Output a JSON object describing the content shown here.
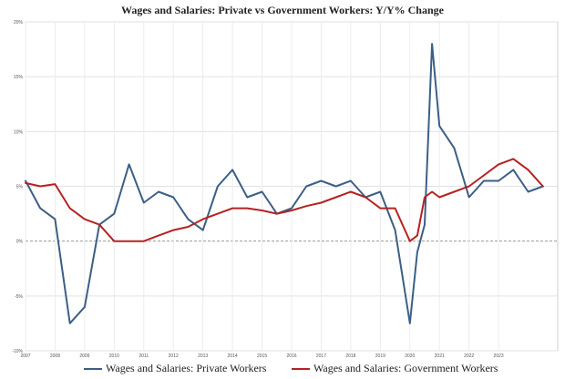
{
  "chart_data": {
    "type": "line",
    "title": "Wages and Salaries: Private vs Government Workers: Y/Y% Change",
    "xlabel": "",
    "ylabel": "",
    "x": [
      "2007",
      "2007.5",
      "2008",
      "2008.5",
      "2009",
      "2009.5",
      "2010",
      "2010.5",
      "2011",
      "2011.5",
      "2012",
      "2012.5",
      "2013",
      "2013.5",
      "2014",
      "2014.5",
      "2015",
      "2015.5",
      "2016",
      "2016.5",
      "2017",
      "2017.5",
      "2018",
      "2018.5",
      "2019",
      "2019.5",
      "2020",
      "2020.25",
      "2020.5",
      "2020.75",
      "2021",
      "2021.5",
      "2022",
      "2022.5",
      "2023",
      "2023.5",
      "2024",
      "2024.5"
    ],
    "xtick_labels": [
      "2007",
      "2008",
      "2009",
      "2010",
      "2011",
      "2012",
      "2013",
      "2014",
      "2015",
      "2016",
      "2017",
      "2018",
      "2019",
      "2020",
      "2021",
      "2022",
      "2023"
    ],
    "ytick_labels": [
      "-10%",
      "-5%",
      "0%",
      "5%",
      "10%",
      "15%",
      "20%"
    ],
    "ylim": [
      -10,
      20
    ],
    "baseline": 0,
    "grid": true,
    "legend_position": "bottom",
    "series": [
      {
        "name": "Wages and Salaries: Private Workers",
        "color": "#3b5f86",
        "values": [
          5.5,
          3.0,
          2.0,
          -7.5,
          -6.0,
          1.5,
          2.5,
          7.0,
          3.5,
          4.5,
          4.0,
          2.0,
          1.0,
          5.0,
          6.5,
          4.0,
          4.5,
          2.5,
          3.0,
          5.0,
          5.5,
          5.0,
          5.5,
          4.0,
          4.5,
          1.0,
          -7.5,
          -1.0,
          1.5,
          18.0,
          10.5,
          8.5,
          4.0,
          5.5,
          5.5,
          6.5,
          4.5,
          5.0
        ]
      },
      {
        "name": "Wages and Salaries: Government Workers",
        "color": "#b52222",
        "values": [
          5.3,
          5.0,
          5.2,
          3.0,
          2.0,
          1.5,
          0.0,
          0.0,
          0.0,
          0.5,
          1.0,
          1.3,
          2.0,
          2.5,
          3.0,
          3.0,
          2.8,
          2.5,
          2.8,
          3.2,
          3.5,
          4.0,
          4.5,
          4.0,
          3.0,
          3.0,
          0.0,
          0.5,
          4.0,
          4.5,
          4.0,
          4.5,
          5.0,
          6.0,
          7.0,
          7.5,
          6.5,
          5.0
        ]
      }
    ]
  }
}
